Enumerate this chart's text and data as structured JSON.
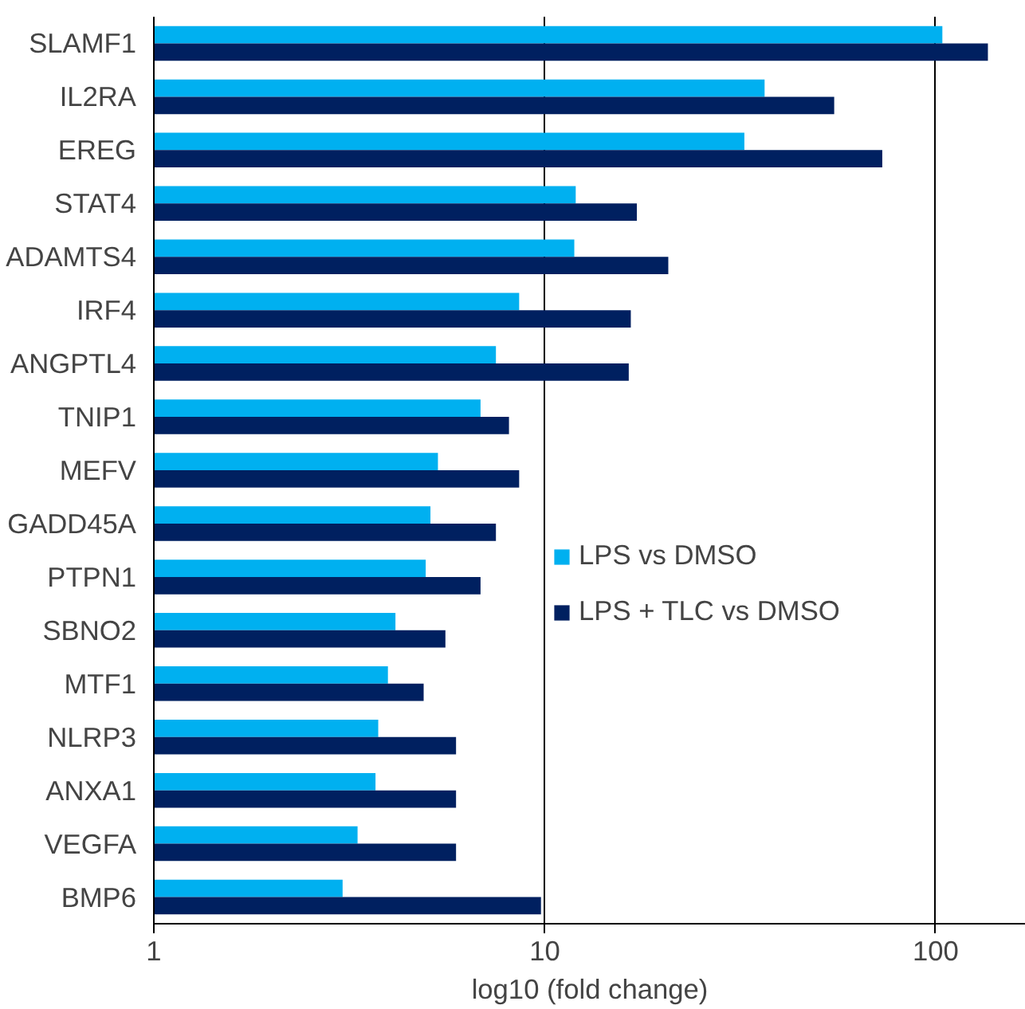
{
  "chart_data": {
    "type": "bar",
    "orientation": "horizontal",
    "xlabel": "log10 (fold change)",
    "log": "x",
    "xlim": [
      1,
      170
    ],
    "xticks": [
      1,
      10,
      100
    ],
    "grid": "x",
    "legend": "right",
    "categories": [
      "SLAMF1",
      "IL2RA",
      "EREG",
      "STAT4",
      "ADAMTS4",
      "IRF4",
      "ANGPTL4",
      "TNIP1",
      "MEFV",
      "GADD45A",
      "PTPN1",
      "SBNO2",
      "MTF1",
      "NLRP3",
      "ANXA1",
      "VEGFA",
      "BMP6"
    ],
    "series": [
      {
        "name": "LPS vs DMSO",
        "color": "#00b0f0",
        "values": [
          104,
          36.5,
          32.4,
          12.0,
          11.9,
          8.6,
          7.5,
          6.85,
          5.33,
          5.1,
          4.96,
          4.15,
          3.97,
          3.75,
          3.69,
          3.32,
          3.04
        ]
      },
      {
        "name": "LPS + TLC vs DMSO",
        "color": "#002060",
        "values": [
          136,
          55,
          73,
          17.2,
          20.7,
          16.6,
          16.4,
          8.1,
          8.6,
          7.5,
          6.85,
          5.57,
          4.9,
          5.93,
          5.93,
          5.93,
          9.78
        ]
      }
    ]
  }
}
